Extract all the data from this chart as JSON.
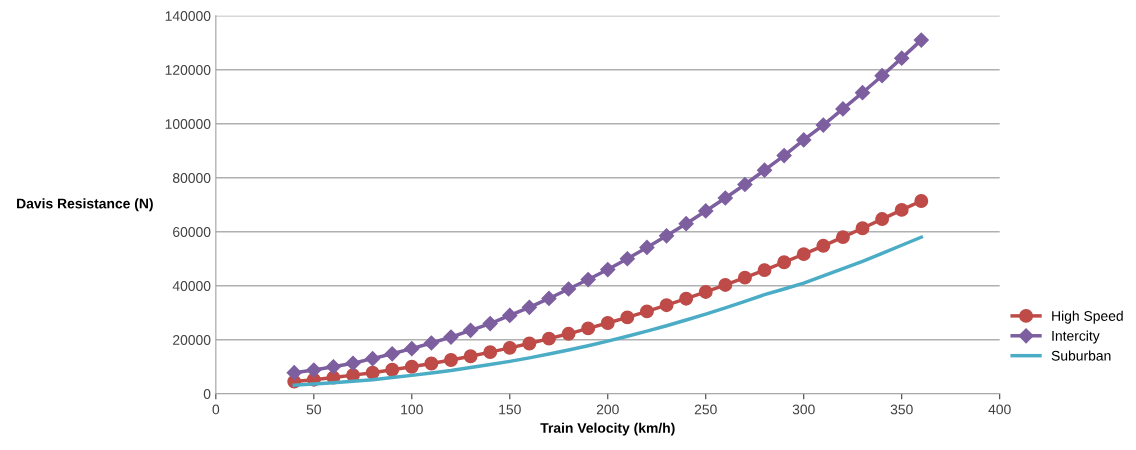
{
  "chart_data": {
    "type": "line",
    "xlabel": "Train Velocity (km/h)",
    "ylabel": "Davis Resistance (N)",
    "x": [
      40,
      50,
      60,
      70,
      80,
      90,
      100,
      110,
      120,
      130,
      140,
      150,
      160,
      170,
      180,
      190,
      200,
      210,
      220,
      230,
      240,
      250,
      260,
      270,
      280,
      290,
      300,
      310,
      320,
      330,
      340,
      350,
      360
    ],
    "series": [
      {
        "name": "High Speed",
        "color": "#be4b48",
        "marker": "circle",
        "values": [
          4500,
          5200,
          6000,
          6900,
          7800,
          8900,
          10000,
          11200,
          12500,
          13900,
          15400,
          17000,
          18600,
          20400,
          22200,
          24200,
          26200,
          28300,
          30500,
          32800,
          35200,
          37700,
          40300,
          43000,
          45800,
          48700,
          51700,
          54800,
          58000,
          61300,
          64700,
          68100,
          71400
        ]
      },
      {
        "name": "Intercity",
        "color": "#7d5fa0",
        "marker": "diamond",
        "values": [
          7800,
          8800,
          10000,
          11300,
          13000,
          14800,
          16700,
          18800,
          21000,
          23500,
          26000,
          29000,
          32000,
          35300,
          38800,
          42300,
          46000,
          50000,
          54200,
          58500,
          63000,
          67700,
          72500,
          77500,
          82800,
          88200,
          94000,
          99500,
          105500,
          111500,
          117800,
          124300,
          131000
        ]
      },
      {
        "name": "Suburban",
        "color": "#4bacc6",
        "marker": "none",
        "values": [
          3200,
          3600,
          4100,
          4600,
          5200,
          6000,
          6800,
          7700,
          8600,
          9700,
          10800,
          12000,
          13300,
          14700,
          16200,
          17800,
          19500,
          21300,
          23200,
          25200,
          27300,
          29500,
          31800,
          34200,
          36700,
          38800,
          41000,
          43700,
          46300,
          49000,
          52000,
          55000,
          58000
        ]
      }
    ],
    "xlim": [
      0,
      400
    ],
    "xticks": [
      0,
      50,
      100,
      150,
      200,
      250,
      300,
      350,
      400
    ],
    "ylim": [
      0,
      140000
    ],
    "yticks": [
      0,
      20000,
      40000,
      60000,
      80000,
      100000,
      120000,
      140000
    ],
    "grid": "y",
    "legend": "right"
  }
}
